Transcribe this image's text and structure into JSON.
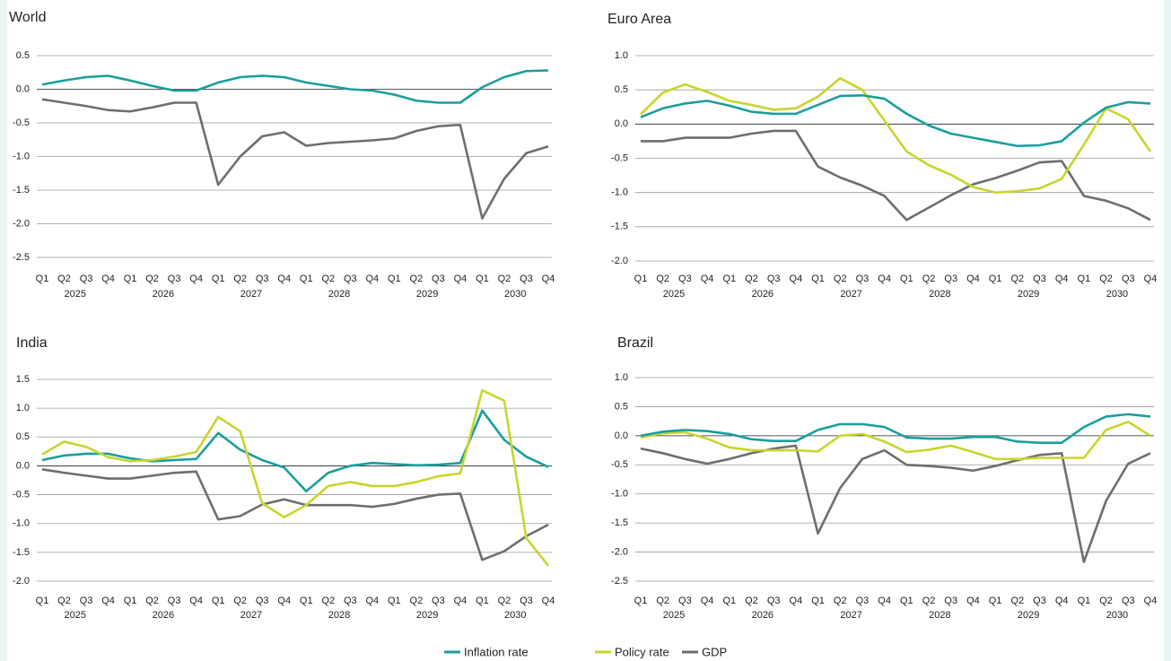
{
  "chart_data": [
    {
      "type": "line",
      "title": "World",
      "categories": [
        "Q1",
        "Q2",
        "Q3",
        "Q4",
        "Q1",
        "Q2",
        "Q3",
        "Q4",
        "Q1",
        "Q2",
        "Q3",
        "Q4",
        "Q1",
        "Q2",
        "Q3",
        "Q4",
        "Q1",
        "Q2",
        "Q3",
        "Q4",
        "Q1",
        "Q2",
        "Q3",
        "Q4"
      ],
      "x_groups": [
        "2025",
        "2026",
        "2027",
        "2028",
        "2029",
        "2030"
      ],
      "ylim": [
        -2.5,
        0.5
      ],
      "yticks": [
        0.5,
        {
          "value": 0,
          "label": "0.0"
        },
        -0.5,
        {
          "value": -1,
          "label": "-1.0"
        },
        -1.5,
        {
          "value": -2,
          "label": "-2.0"
        },
        -2.5
      ],
      "grid": true,
      "series": [
        {
          "color": "#6d6e70",
          "values": [
            -0.15,
            -0.2,
            -0.25,
            -0.31,
            -0.33,
            -0.27,
            -0.2,
            -0.2,
            -1.42,
            -1.0,
            -0.7,
            -0.64,
            -0.84,
            -0.8,
            -0.78,
            -0.76,
            -0.73,
            -0.62,
            -0.55,
            -0.53,
            -1.92,
            -1.33,
            -0.95,
            -0.85
          ]
        },
        {
          "color": "#1a9e9e",
          "values": [
            0.07,
            0.13,
            0.18,
            0.2,
            0.13,
            0.05,
            -0.02,
            -0.02,
            0.1,
            0.18,
            0.2,
            0.18,
            0.1,
            0.05,
            0.0,
            -0.02,
            -0.08,
            -0.17,
            -0.2,
            -0.2,
            0.03,
            0.18,
            0.27,
            0.28
          ]
        }
      ]
    },
    {
      "type": "line",
      "title": "Euro Area",
      "categories": [
        "Q1",
        "Q2",
        "Q3",
        "Q4",
        "Q1",
        "Q2",
        "Q3",
        "Q4",
        "Q1",
        "Q2",
        "Q3",
        "Q4",
        "Q1",
        "Q2",
        "Q3",
        "Q4",
        "Q1",
        "Q2",
        "Q3",
        "Q4",
        "Q1",
        "Q2",
        "Q3",
        "Q4"
      ],
      "x_groups": [
        "2025",
        "2026",
        "2027",
        "2028",
        "2029",
        "2030"
      ],
      "ylim": [
        -2,
        1
      ],
      "yticks": [
        {
          "value": 1,
          "label": "1.0"
        },
        0.5,
        {
          "value": 0,
          "label": "0.0"
        },
        -0.5,
        {
          "value": -1,
          "label": "-1.0"
        },
        -1.5,
        {
          "value": -2,
          "label": "-2.0"
        }
      ],
      "grid": true,
      "series": [
        {
          "color": "#6d6e70",
          "values": [
            -0.25,
            -0.25,
            -0.2,
            -0.2,
            -0.2,
            -0.14,
            -0.1,
            -0.1,
            -0.62,
            -0.78,
            -0.9,
            -1.05,
            -1.4,
            -1.22,
            -1.04,
            -0.88,
            -0.79,
            -0.68,
            -0.56,
            -0.54,
            -1.05,
            -1.12,
            -1.23,
            -1.4
          ]
        },
        {
          "color": "#c8d52e",
          "values": [
            0.14,
            0.46,
            0.58,
            0.47,
            0.34,
            0.28,
            0.21,
            0.23,
            0.4,
            0.67,
            0.5,
            0.05,
            -0.4,
            -0.6,
            -0.74,
            -0.92,
            -1.0,
            -0.98,
            -0.94,
            -0.8,
            -0.3,
            0.23,
            0.07,
            -0.4
          ]
        },
        {
          "color": "#1a9e9e",
          "values": [
            0.1,
            0.23,
            0.3,
            0.34,
            0.27,
            0.18,
            0.15,
            0.15,
            0.28,
            0.41,
            0.42,
            0.37,
            0.15,
            -0.02,
            -0.14,
            -0.2,
            -0.26,
            -0.32,
            -0.31,
            -0.25,
            0.02,
            0.24,
            0.32,
            0.3
          ]
        }
      ]
    },
    {
      "type": "line",
      "title": "India",
      "categories": [
        "Q1",
        "Q2",
        "Q3",
        "Q4",
        "Q1",
        "Q2",
        "Q3",
        "Q4",
        "Q1",
        "Q2",
        "Q3",
        "Q4",
        "Q1",
        "Q2",
        "Q3",
        "Q4",
        "Q1",
        "Q2",
        "Q3",
        "Q4",
        "Q1",
        "Q2",
        "Q3",
        "Q4"
      ],
      "x_groups": [
        "2025",
        "2026",
        "2027",
        "2028",
        "2029",
        "2030"
      ],
      "ylim": [
        -2,
        1.5
      ],
      "yticks": [
        1.5,
        {
          "value": 1,
          "label": "1.0"
        },
        0.5,
        {
          "value": 0,
          "label": "0.0"
        },
        -0.5,
        {
          "value": -1,
          "label": "-1.0"
        },
        -1.5,
        {
          "value": -2,
          "label": "-2.0"
        }
      ],
      "grid": true,
      "series": [
        {
          "color": "#6d6e70",
          "values": [
            -0.06,
            -0.12,
            -0.17,
            -0.22,
            -0.22,
            -0.17,
            -0.12,
            -0.1,
            -0.93,
            -0.87,
            -0.67,
            -0.58,
            -0.68,
            -0.68,
            -0.68,
            -0.71,
            -0.66,
            -0.57,
            -0.5,
            -0.48,
            -1.63,
            -1.48,
            -1.22,
            -1.02
          ]
        },
        {
          "color": "#1a9e9e",
          "values": [
            0.1,
            0.18,
            0.21,
            0.21,
            0.13,
            0.08,
            0.1,
            0.12,
            0.57,
            0.28,
            0.1,
            -0.03,
            -0.44,
            -0.12,
            0.0,
            0.05,
            0.03,
            0.01,
            0.02,
            0.05,
            0.96,
            0.45,
            0.16,
            -0.02
          ]
        },
        {
          "color": "#c8d52e",
          "values": [
            0.2,
            0.42,
            0.33,
            0.15,
            0.08,
            0.1,
            0.16,
            0.24,
            0.85,
            0.6,
            -0.65,
            -0.89,
            -0.68,
            -0.35,
            -0.28,
            -0.35,
            -0.35,
            -0.28,
            -0.18,
            -0.13,
            1.31,
            1.13,
            -1.25,
            -1.73
          ]
        }
      ]
    },
    {
      "type": "line",
      "title": "Brazil",
      "categories": [
        "Q1",
        "Q2",
        "Q3",
        "Q4",
        "Q1",
        "Q2",
        "Q3",
        "Q4",
        "Q1",
        "Q2",
        "Q3",
        "Q4",
        "Q1",
        "Q2",
        "Q3",
        "Q4",
        "Q1",
        "Q2",
        "Q3",
        "Q4",
        "Q1",
        "Q2",
        "Q3",
        "Q4"
      ],
      "x_groups": [
        "2025",
        "2026",
        "2027",
        "2028",
        "2029",
        "2030"
      ],
      "ylim": [
        -2.5,
        1
      ],
      "yticks": [
        {
          "value": 1,
          "label": "1.0"
        },
        0.5,
        {
          "value": 0,
          "label": "0.0"
        },
        -0.5,
        {
          "value": -1,
          "label": "-1.0"
        },
        -1.5,
        {
          "value": -2,
          "label": "-2.0"
        },
        -2.5
      ],
      "grid": true,
      "series": [
        {
          "color": "#6d6e70",
          "values": [
            -0.22,
            -0.3,
            -0.4,
            -0.48,
            -0.4,
            -0.3,
            -0.22,
            -0.17,
            -1.68,
            -0.9,
            -0.4,
            -0.25,
            -0.5,
            -0.52,
            -0.55,
            -0.6,
            -0.52,
            -0.42,
            -0.33,
            -0.3,
            -2.17,
            -1.12,
            -0.48,
            -0.3
          ]
        },
        {
          "color": "#c8d52e",
          "values": [
            -0.03,
            0.04,
            0.06,
            -0.05,
            -0.2,
            -0.25,
            -0.25,
            -0.25,
            -0.27,
            0.0,
            0.03,
            -0.1,
            -0.28,
            -0.24,
            -0.17,
            -0.28,
            -0.4,
            -0.4,
            -0.38,
            -0.38,
            -0.38,
            0.1,
            0.24,
            0.0
          ]
        },
        {
          "color": "#1a9e9e",
          "values": [
            0.0,
            0.07,
            0.1,
            0.08,
            0.03,
            -0.06,
            -0.09,
            -0.09,
            0.1,
            0.2,
            0.2,
            0.15,
            -0.03,
            -0.05,
            -0.05,
            -0.02,
            -0.02,
            -0.1,
            -0.12,
            -0.12,
            0.15,
            0.33,
            0.37,
            0.33
          ]
        }
      ]
    }
  ],
  "legend": [
    {
      "name": "Inflation rate",
      "color": "#1a9e9e"
    },
    {
      "name": "Policy rate",
      "color": "#c8d52e"
    },
    {
      "name": "GDP",
      "color": "#6d6e70"
    }
  ]
}
